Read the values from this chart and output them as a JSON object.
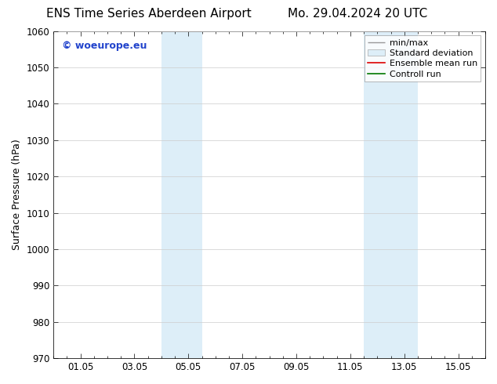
{
  "title_left": "ENS Time Series Aberdeen Airport",
  "title_right": "Mo. 29.04.2024 20 UTC",
  "ylabel": "Surface Pressure (hPa)",
  "ylim": [
    970,
    1060
  ],
  "yticks": [
    970,
    980,
    990,
    1000,
    1010,
    1020,
    1030,
    1040,
    1050,
    1060
  ],
  "xtick_labels": [
    "01.05",
    "03.05",
    "05.05",
    "07.05",
    "09.05",
    "11.05",
    "13.05",
    "15.05"
  ],
  "xtick_positions": [
    1,
    3,
    5,
    7,
    9,
    11,
    13,
    15
  ],
  "xlim": [
    0,
    16
  ],
  "shaded_bands": [
    {
      "x_start": 4.0,
      "x_end": 5.5
    },
    {
      "x_start": 11.5,
      "x_end": 13.5
    }
  ],
  "shaded_color": "#ddeef8",
  "watermark_text": "© woeurope.eu",
  "watermark_color": "#2244cc",
  "legend_items": [
    {
      "label": "min/max"
    },
    {
      "label": "Standard deviation"
    },
    {
      "label": "Ensemble mean run"
    },
    {
      "label": "Controll run"
    }
  ],
  "bg_color": "#ffffff",
  "grid_color": "#cccccc",
  "title_fontsize": 11,
  "axis_fontsize": 9,
  "tick_fontsize": 8.5,
  "legend_fontsize": 8,
  "watermark_fontsize": 9
}
